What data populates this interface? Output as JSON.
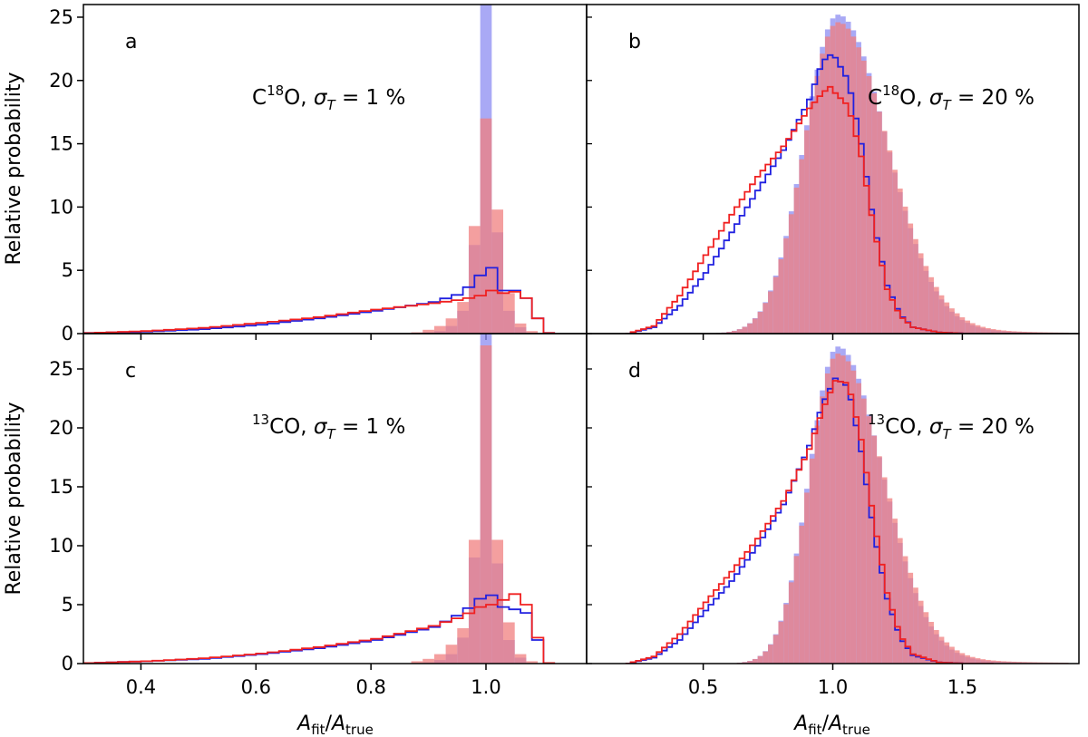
{
  "chart_data": {
    "type": "histogram-grid",
    "ylabel": "Relative probability",
    "xlabel": "A_fit/A_true",
    "xlabel_parts": {
      "main": "A",
      "sub1": "fit",
      "sep": "/",
      "main2": "A",
      "sub2": "true"
    },
    "colors": {
      "blue_fill": "#8c8cf2",
      "red_fill": "#f07f7f",
      "blue_line": "#2020e0",
      "red_line": "#f02020"
    },
    "panels": [
      {
        "id": "a",
        "letter": "a",
        "annotation": {
          "prefix": "C",
          "sup": "18",
          "suffix": "O,",
          "sigma": "σ",
          "sigma_sub": "T",
          "value": " = 1 %"
        },
        "xlim": [
          0.3,
          1.175
        ],
        "ylim": [
          0,
          26
        ],
        "yticks": [
          0,
          5,
          10,
          15,
          20,
          25
        ],
        "xticks": [
          0.4,
          0.6,
          0.8,
          1.0
        ],
        "bin_width": 0.02,
        "blue_hist": [
          [
            0.9,
            0.1
          ],
          [
            0.92,
            0.2
          ],
          [
            0.94,
            0.6
          ],
          [
            0.96,
            1.8
          ],
          [
            0.98,
            7.0
          ],
          [
            1.0,
            26.0
          ],
          [
            1.02,
            8.0
          ],
          [
            1.04,
            1.8
          ],
          [
            1.06,
            0.5
          ]
        ],
        "red_hist": [
          [
            0.88,
            0.1
          ],
          [
            0.9,
            0.3
          ],
          [
            0.92,
            0.6
          ],
          [
            0.94,
            1.2
          ],
          [
            0.96,
            2.5
          ],
          [
            0.98,
            8.5
          ],
          [
            1.0,
            17.0
          ],
          [
            1.02,
            9.8
          ],
          [
            1.04,
            3.2
          ],
          [
            1.06,
            0.8
          ],
          [
            1.08,
            0.2
          ]
        ],
        "blue_line": [
          [
            0.3,
            0.05
          ],
          [
            0.4,
            0.15
          ],
          [
            0.5,
            0.35
          ],
          [
            0.6,
            0.7
          ],
          [
            0.7,
            1.2
          ],
          [
            0.8,
            1.8
          ],
          [
            0.9,
            2.5
          ],
          [
            0.95,
            3.2
          ],
          [
            0.98,
            4.6
          ],
          [
            1.0,
            5.2
          ],
          [
            1.02,
            3.4
          ],
          [
            1.04,
            3.4
          ],
          [
            1.06,
            2.8
          ],
          [
            1.08,
            1.2
          ],
          [
            1.1,
            0.05
          ]
        ],
        "red_line": [
          [
            0.3,
            0.05
          ],
          [
            0.4,
            0.2
          ],
          [
            0.5,
            0.45
          ],
          [
            0.6,
            0.85
          ],
          [
            0.7,
            1.3
          ],
          [
            0.8,
            1.9
          ],
          [
            0.9,
            2.4
          ],
          [
            0.95,
            2.7
          ],
          [
            0.98,
            3.0
          ],
          [
            1.0,
            3.4
          ],
          [
            1.02,
            3.2
          ],
          [
            1.04,
            3.3
          ],
          [
            1.06,
            2.8
          ],
          [
            1.08,
            1.2
          ],
          [
            1.1,
            0.05
          ]
        ]
      },
      {
        "id": "b",
        "letter": "b",
        "annotation": {
          "prefix": "C",
          "sup": "18",
          "suffix": "O,",
          "sigma": "σ",
          "sigma_sub": "T",
          "value": " = 20 %"
        },
        "xlim": [
          0.05,
          1.95
        ],
        "ylim": [
          0,
          26
        ],
        "yticks": [],
        "xticks": [
          0.5,
          1.0,
          1.5
        ],
        "hist_x_range": [
          0.2,
          1.9
        ],
        "bin_width": 0.02,
        "hist_blue": {
          "peak": 1.02,
          "height": 25.2,
          "sigma_left": 0.13,
          "sigma_right": 0.185,
          "tail_amp": 1.2,
          "tail_scale": 0.28
        },
        "hist_red": {
          "peak": 1.02,
          "height": 24.6,
          "sigma_left": 0.13,
          "sigma_right": 0.19,
          "tail_amp": 1.4,
          "tail_scale": 0.3
        },
        "line_blue": [
          [
            0.2,
            0.0
          ],
          [
            0.3,
            0.5
          ],
          [
            0.4,
            2.2
          ],
          [
            0.5,
            4.8
          ],
          [
            0.6,
            8.0
          ],
          [
            0.7,
            11.3
          ],
          [
            0.8,
            14.5
          ],
          [
            0.9,
            18.5
          ],
          [
            0.95,
            21.5
          ],
          [
            0.98,
            22.0
          ],
          [
            1.0,
            21.8
          ],
          [
            1.05,
            20.0
          ],
          [
            1.1,
            15.0
          ],
          [
            1.15,
            8.5
          ],
          [
            1.2,
            3.8
          ],
          [
            1.25,
            1.5
          ],
          [
            1.3,
            0.5
          ],
          [
            1.4,
            0.1
          ],
          [
            1.5,
            0.0
          ]
        ],
        "line_red": [
          [
            0.2,
            0.0
          ],
          [
            0.3,
            0.6
          ],
          [
            0.4,
            3.0
          ],
          [
            0.5,
            6.2
          ],
          [
            0.6,
            9.4
          ],
          [
            0.7,
            12.4
          ],
          [
            0.8,
            14.8
          ],
          [
            0.9,
            17.8
          ],
          [
            0.95,
            19.0
          ],
          [
            0.98,
            19.5
          ],
          [
            1.0,
            19.0
          ],
          [
            1.05,
            18.0
          ],
          [
            1.1,
            14.0
          ],
          [
            1.15,
            8.2
          ],
          [
            1.2,
            3.5
          ],
          [
            1.25,
            1.4
          ],
          [
            1.3,
            0.5
          ],
          [
            1.4,
            0.1
          ],
          [
            1.5,
            0.0
          ]
        ]
      },
      {
        "id": "c",
        "letter": "c",
        "annotation": {
          "prefix": "",
          "sup": "13",
          "suffix": "CO,",
          "sigma": "σ",
          "sigma_sub": "T",
          "value": " = 1 %"
        },
        "xlim": [
          0.3,
          1.175
        ],
        "ylim": [
          0,
          28
        ],
        "yticks": [
          0,
          5,
          10,
          15,
          20,
          25
        ],
        "xticks": [
          0.4,
          0.6,
          0.8,
          1.0
        ],
        "bin_width": 0.02,
        "blue_hist": [
          [
            0.9,
            0.1
          ],
          [
            0.92,
            0.3
          ],
          [
            0.94,
            0.8
          ],
          [
            0.96,
            2.2
          ],
          [
            0.98,
            9.0
          ],
          [
            1.0,
            28.0
          ],
          [
            1.02,
            8.5
          ],
          [
            1.04,
            2.0
          ],
          [
            1.06,
            0.5
          ]
        ],
        "red_hist": [
          [
            0.88,
            0.2
          ],
          [
            0.9,
            0.4
          ],
          [
            0.92,
            0.8
          ],
          [
            0.94,
            1.6
          ],
          [
            0.96,
            3.0
          ],
          [
            0.98,
            10.5
          ],
          [
            1.0,
            27.0
          ],
          [
            1.02,
            10.5
          ],
          [
            1.04,
            3.5
          ],
          [
            1.06,
            0.8
          ],
          [
            1.08,
            0.2
          ]
        ],
        "blue_line": [
          [
            0.3,
            0.05
          ],
          [
            0.4,
            0.2
          ],
          [
            0.5,
            0.4
          ],
          [
            0.6,
            0.8
          ],
          [
            0.7,
            1.3
          ],
          [
            0.8,
            2.0
          ],
          [
            0.9,
            3.1
          ],
          [
            0.95,
            4.3
          ],
          [
            0.98,
            5.5
          ],
          [
            1.0,
            5.8
          ],
          [
            1.02,
            4.8
          ],
          [
            1.04,
            4.6
          ],
          [
            1.06,
            4.3
          ],
          [
            1.08,
            2.0
          ],
          [
            1.1,
            0.05
          ]
        ],
        "red_line": [
          [
            0.3,
            0.05
          ],
          [
            0.4,
            0.2
          ],
          [
            0.5,
            0.45
          ],
          [
            0.6,
            0.85
          ],
          [
            0.7,
            1.4
          ],
          [
            0.8,
            2.1
          ],
          [
            0.9,
            3.2
          ],
          [
            0.95,
            4.0
          ],
          [
            0.98,
            4.8
          ],
          [
            1.0,
            5.0
          ],
          [
            1.02,
            5.4
          ],
          [
            1.04,
            5.9
          ],
          [
            1.06,
            5.0
          ],
          [
            1.08,
            2.2
          ],
          [
            1.1,
            0.05
          ]
        ]
      },
      {
        "id": "d",
        "letter": "d",
        "annotation": {
          "prefix": "",
          "sup": "13",
          "suffix": "CO,",
          "sigma": "σ",
          "sigma_sub": "T",
          "value": " = 20 %"
        },
        "xlim": [
          0.05,
          1.95
        ],
        "ylim": [
          0,
          28
        ],
        "yticks": [],
        "xticks": [
          0.5,
          1.0,
          1.5
        ],
        "hist_x_range": [
          0.2,
          1.9
        ],
        "bin_width": 0.02,
        "hist_blue": {
          "peak": 1.02,
          "height": 26.9,
          "sigma_left": 0.11,
          "sigma_right": 0.17,
          "tail_amp": 1.2,
          "tail_scale": 0.28
        },
        "hist_red": {
          "peak": 1.02,
          "height": 26.3,
          "sigma_left": 0.11,
          "sigma_right": 0.175,
          "tail_amp": 1.4,
          "tail_scale": 0.3
        },
        "line_blue": [
          [
            0.2,
            0.0
          ],
          [
            0.3,
            0.5
          ],
          [
            0.4,
            2.0
          ],
          [
            0.5,
            4.5
          ],
          [
            0.6,
            7.0
          ],
          [
            0.7,
            10.0
          ],
          [
            0.8,
            13.5
          ],
          [
            0.9,
            18.5
          ],
          [
            0.95,
            22.0
          ],
          [
            1.0,
            24.2
          ],
          [
            1.05,
            23.5
          ],
          [
            1.1,
            18.0
          ],
          [
            1.15,
            11.0
          ],
          [
            1.2,
            5.5
          ],
          [
            1.25,
            2.2
          ],
          [
            1.3,
            0.7
          ],
          [
            1.4,
            0.1
          ],
          [
            1.5,
            0.0
          ]
        ],
        "line_red": [
          [
            0.2,
            0.0
          ],
          [
            0.3,
            0.6
          ],
          [
            0.4,
            2.5
          ],
          [
            0.5,
            5.2
          ],
          [
            0.6,
            7.8
          ],
          [
            0.7,
            10.6
          ],
          [
            0.8,
            13.8
          ],
          [
            0.9,
            18.2
          ],
          [
            0.95,
            21.5
          ],
          [
            1.0,
            24.0
          ],
          [
            1.05,
            23.8
          ],
          [
            1.1,
            19.0
          ],
          [
            1.15,
            12.0
          ],
          [
            1.2,
            6.0
          ],
          [
            1.25,
            2.4
          ],
          [
            1.3,
            0.8
          ],
          [
            1.4,
            0.1
          ],
          [
            1.5,
            0.0
          ]
        ]
      }
    ]
  }
}
